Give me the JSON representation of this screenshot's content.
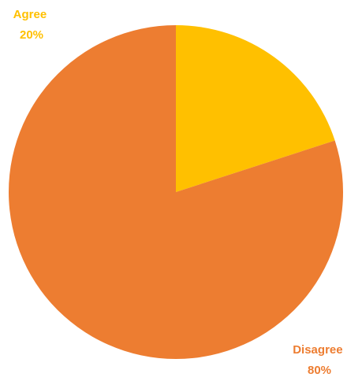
{
  "chart_data": {
    "type": "pie",
    "title": "",
    "slices": [
      {
        "label": "Agree",
        "value": 20,
        "percent_label": "20%",
        "color": "#FFC000"
      },
      {
        "label": "Disagree",
        "value": 80,
        "percent_label": "80%",
        "color": "#ED7D31"
      }
    ],
    "legend": "none",
    "data_labels": "outside, category name and percentage"
  }
}
